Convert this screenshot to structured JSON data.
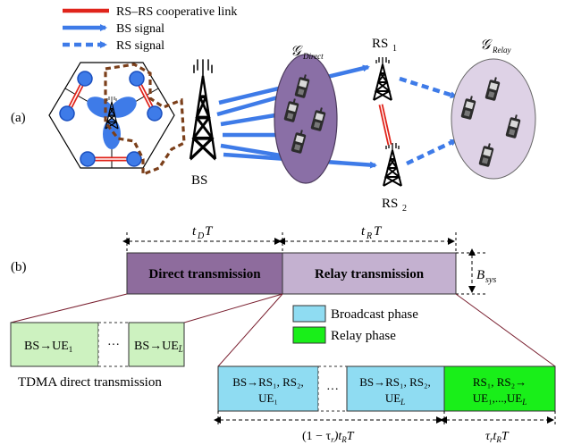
{
  "legend": {
    "rs_link": "RS–RS cooperative link",
    "bs_signal": "BS signal",
    "rs_signal": "RS signal"
  },
  "part_a": {
    "label": "(a)",
    "bs_label": "BS",
    "rs1_label": "RS",
    "rs1_sub": "1",
    "rs2_label": "RS",
    "rs2_sub": "2",
    "group_direct_g": "𝒢",
    "group_direct_sub": "Direct",
    "group_relay_g": "𝒢",
    "group_relay_sub": "Relay"
  },
  "part_b": {
    "label": "(b)",
    "td_t": "t",
    "td_sub": "D",
    "td_T": "T",
    "tr_t": "t",
    "tr_sub": "R",
    "tr_T": "T",
    "direct_label": "Direct transmission",
    "relay_label": "Relay transmission",
    "bsys_B": "B",
    "bsys_sub": "sys",
    "ue1_cell": {
      "pre": "BS",
      "arrow": "→",
      "ue": "UE",
      "sub": "1"
    },
    "uel_cell": {
      "pre": "BS",
      "arrow": "→",
      "ue": "UE",
      "sub": "L̄"
    },
    "dots": "···",
    "tdma_caption": "TDMA direct transmission",
    "legend_broadcast": "Broadcast phase",
    "legend_relay": "Relay phase",
    "bc1_line1": "BS→RS₁, RS₂,",
    "bc1_line2": "UE₁",
    "bcL_line1": "BS→RS₁, RS₂,",
    "bcL_line2": "UE",
    "bcL_sub": "L",
    "relay_line1": "RS₁, RS₂→",
    "relay_line2": "UE₁,...,UE",
    "relay_sub": "L",
    "bottom_left": "(1 − τ",
    "bottom_left_sub": "r",
    "bottom_left_end": ")t",
    "bottom_left_sub2": "R",
    "bottom_left_T": "T",
    "bottom_right": "τ",
    "bottom_right_sub": "r",
    "bottom_right_t": "t",
    "bottom_right_sub2": "R",
    "bottom_right_T": "T"
  },
  "colors": {
    "rs_link": "#e0241b",
    "bs_blue": "#3e7be8",
    "direct_group": "#8a6fa6",
    "relay_group": "#ded2e6",
    "direct_box": "#8e6c9d",
    "relay_box": "#c4b1d0",
    "cell_green": "#cdf2c0",
    "broadcast": "#8fdcf2",
    "relay_phase": "#19ef19",
    "brown_dash": "#7b3f1a"
  }
}
